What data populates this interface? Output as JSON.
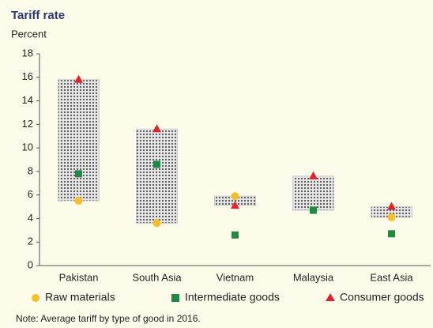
{
  "chart_data": {
    "type": "range-dot",
    "title": "Tariff rate",
    "y_label": "Percent",
    "categories": [
      "Pakistan",
      "South Asia",
      "Vietnam",
      "Malaysia",
      "East Asia"
    ],
    "series": [
      {
        "name": "Raw materials",
        "color": "#f5c02a",
        "marker": "circle",
        "values": [
          5.5,
          3.6,
          5.9,
          4.7,
          4.1
        ]
      },
      {
        "name": "Intermediate goods",
        "color": "#1e8a46",
        "marker": "square",
        "values": [
          7.8,
          8.6,
          2.6,
          4.7,
          2.7
        ]
      },
      {
        "name": "Consumer goods",
        "color": "#e0232b",
        "marker": "triangle",
        "values": [
          15.8,
          11.6,
          5.1,
          7.6,
          5.0
        ]
      }
    ],
    "ylim": [
      0,
      18
    ],
    "yticks": [
      0,
      2,
      4,
      6,
      8,
      10,
      12,
      14,
      16,
      18
    ],
    "note": "Note: Average tariff by type of good in 2016."
  }
}
